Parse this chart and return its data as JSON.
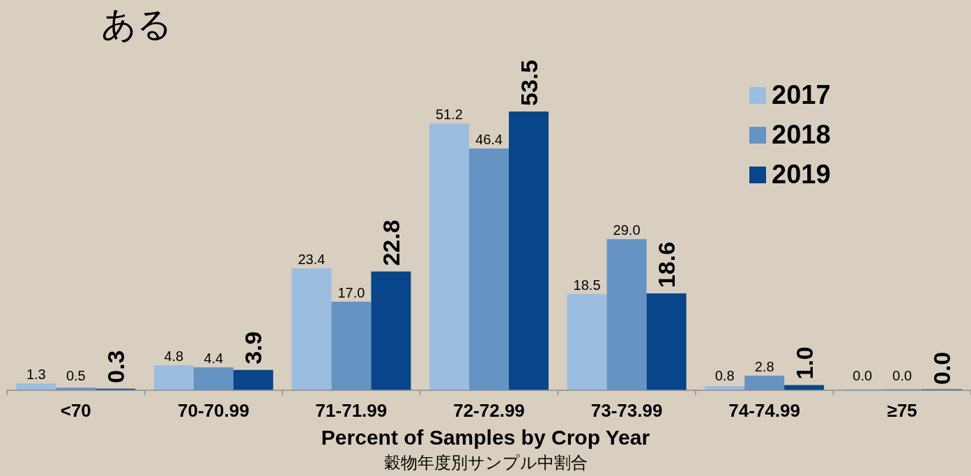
{
  "chart_data": {
    "type": "bar",
    "title": "ある",
    "xlabel": "Percent of Samples by Crop Year",
    "subtitle": "穀物年度別サンプル中割合",
    "categories": [
      "<70",
      "70-70.99",
      "71-71.99",
      "72-72.99",
      "73-73.99",
      "74-74.99",
      "≥75"
    ],
    "series": [
      {
        "name": "2017",
        "color": "#9bbde0",
        "values": [
          1.3,
          4.8,
          23.4,
          51.2,
          18.5,
          0.8,
          0.0
        ],
        "value_labels": [
          "1.3",
          "4.8",
          "23.4",
          "51.2",
          "18.5",
          "0.8",
          "0.0"
        ]
      },
      {
        "name": "2018",
        "color": "#6593c4",
        "values": [
          0.5,
          4.4,
          17.0,
          46.4,
          29.0,
          2.8,
          0.0
        ],
        "value_labels": [
          "0.5",
          "4.4",
          "17.0",
          "46.4",
          "29.0",
          "2.8",
          "0.0"
        ]
      },
      {
        "name": "2019",
        "color": "#08458a",
        "values": [
          0.3,
          3.9,
          22.8,
          53.5,
          18.6,
          1.0,
          0.0
        ],
        "value_labels": [
          "0.3",
          "3.9",
          "22.8",
          "53.5",
          "18.6",
          "1.0",
          "0.0"
        ]
      }
    ],
    "legend": "top right"
  }
}
